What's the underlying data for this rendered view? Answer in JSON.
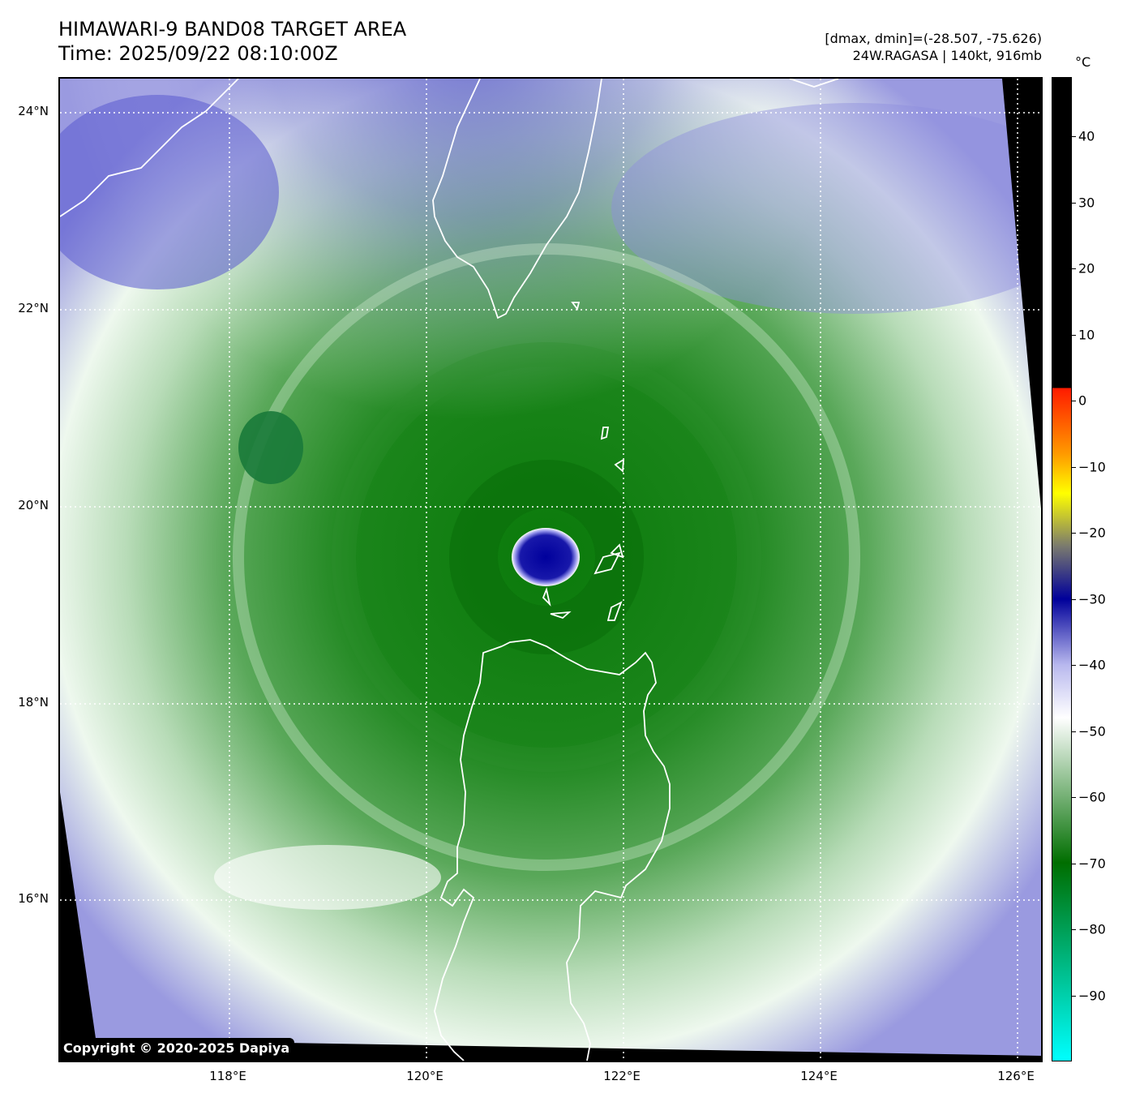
{
  "header": {
    "title_line1": "HIMAWARI-9 BAND08 TARGET AREA",
    "title_line2": "Time: 2025/09/22 08:10:00Z",
    "info_line1": "[dmax, dmin]=(-28.507, -75.626)",
    "info_line2": "24W.RAGASA | 140kt, 916mb"
  },
  "map": {
    "lat_labels": [
      "24°N",
      "22°N",
      "20°N",
      "18°N",
      "16°N"
    ],
    "lon_labels": [
      "118°E",
      "120°E",
      "122°E",
      "124°E",
      "126°E"
    ],
    "gridlines": "dotted white",
    "coastline_color": "#ffffff",
    "copyright": "Copyright © 2020-2025 Dapiya"
  },
  "colorbar": {
    "unit": "°C",
    "tick_labels": [
      "40",
      "30",
      "20",
      "10",
      "0",
      "−10",
      "−20",
      "−30",
      "−40",
      "−50",
      "−60",
      "−70",
      "−80",
      "−90"
    ],
    "scale_top": 49,
    "scale_bottom": -100,
    "colors": {
      "warm": "#000000",
      "red": "#ff1a00",
      "orange": "#ff9a00",
      "yellow": "#ffff00",
      "gray": "#7a7a6e",
      "blue": "#00009a",
      "lavender": "#b8b8ee",
      "white": "#ffffff",
      "green": "#006e00",
      "cyan": "#00ffff"
    }
  }
}
